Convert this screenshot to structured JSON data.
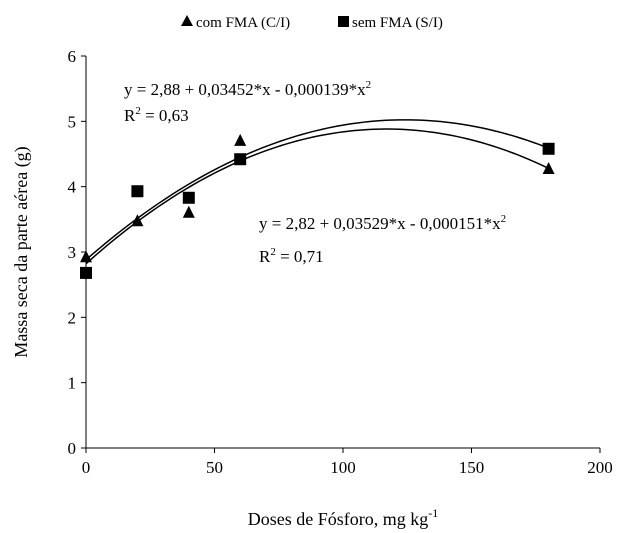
{
  "chart_data": {
    "type": "scatter",
    "title": "",
    "xlabel": "Doses de Fósforo, mg kg",
    "xlabel_sup": "-1",
    "ylabel": "Massa seca da parte aérea (g)",
    "xlim": [
      0,
      200
    ],
    "ylim": [
      0,
      6
    ],
    "x_ticks": [
      0,
      50,
      100,
      150,
      200
    ],
    "y_ticks": [
      0,
      1,
      2,
      3,
      4,
      5,
      6
    ],
    "grid": false,
    "legend_position": "top-center",
    "series": [
      {
        "name": "com FMA (C/I)",
        "marker": "triangle",
        "x": [
          0,
          20,
          40,
          60,
          180
        ],
        "y": [
          2.92,
          3.47,
          3.6,
          4.7,
          4.27
        ],
        "fit": {
          "a": 2.82,
          "b": 0.03529,
          "c": -0.000151
        },
        "equation_parts": [
          "y = 2,82 + 0,03529*x - 0,000151*x",
          "2"
        ],
        "r2_parts": [
          "R",
          "2",
          " = 0,71"
        ]
      },
      {
        "name": "sem FMA (S/I)",
        "marker": "square",
        "x": [
          0,
          20,
          40,
          60,
          180
        ],
        "y": [
          2.68,
          3.93,
          3.83,
          4.42,
          4.58
        ],
        "fit": {
          "a": 2.88,
          "b": 0.03452,
          "c": -0.000139
        },
        "equation_parts": [
          "y = 2,88 + 0,03452*x - 0,000139*x",
          "2"
        ],
        "r2_parts": [
          "R",
          "2",
          " = 0,63"
        ]
      }
    ],
    "colors": {
      "marker": "#000000",
      "line": "#000000"
    }
  }
}
